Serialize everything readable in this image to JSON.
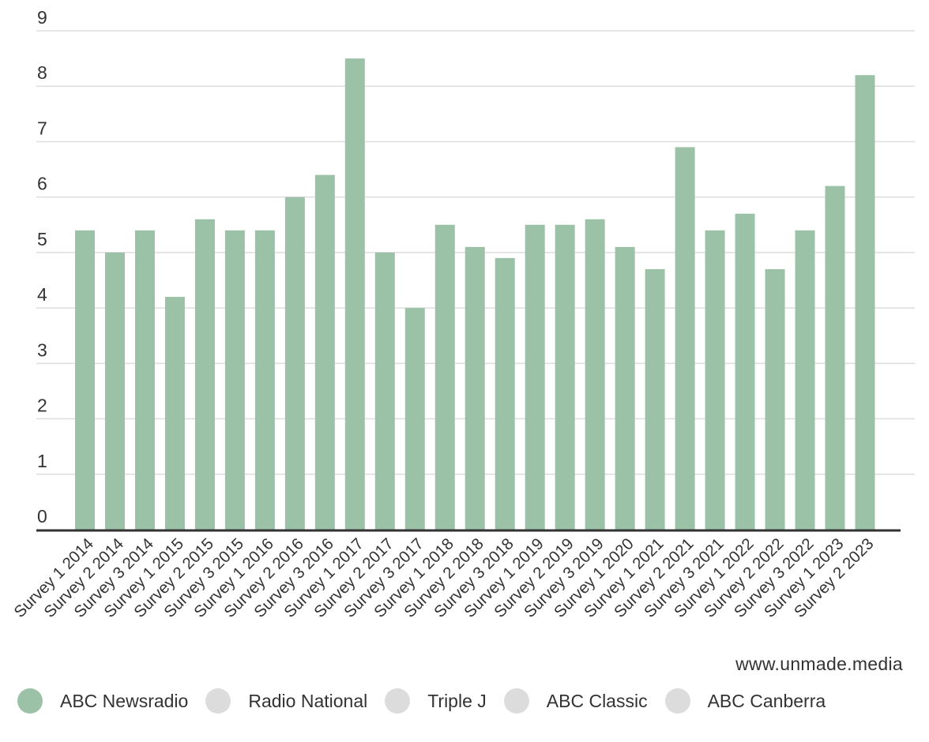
{
  "chart_data": {
    "type": "bar",
    "title": "",
    "xlabel": "",
    "ylabel": "",
    "ylim": [
      0,
      9
    ],
    "yticks": [
      0,
      1,
      2,
      3,
      4,
      5,
      6,
      7,
      8,
      9
    ],
    "grid": true,
    "legend_position": "bottom-left",
    "categories": [
      "Survey 1 2014",
      "Survey 2 2014",
      "Survey 3 2014",
      "Survey 1 2015",
      "Survey 2 2015",
      "Survey 3 2015",
      "Survey 1 2016",
      "Survey 2 2016",
      "Survey 3 2016",
      "Survey 1 2017",
      "Survey 2 2017",
      "Survey 3 2017",
      "Survey 1 2018",
      "Survey 2 2018",
      "Survey 3 2018",
      "Survey 1 2019",
      "Survey 2 2019",
      "Survey 3 2019",
      "Survey 1 2020",
      "Survey 1 2021",
      "Survey 2 2021",
      "Survey 3 2021",
      "Survey 1 2022",
      "Survey 2 2022",
      "Survey 3 2022",
      "Survey 1 2023",
      "Survey 2 2023"
    ],
    "series": [
      {
        "name": "ABC Newsradio",
        "color": "#9bc2a6",
        "active": true,
        "values": [
          5.4,
          5.0,
          5.4,
          4.2,
          5.6,
          5.4,
          5.4,
          6.0,
          6.4,
          8.5,
          5.0,
          4.0,
          5.5,
          5.1,
          4.9,
          5.5,
          5.5,
          5.6,
          5.1,
          4.7,
          6.9,
          5.4,
          5.7,
          4.7,
          5.4,
          6.2,
          8.2
        ]
      }
    ]
  },
  "legend": {
    "items": [
      {
        "label": "ABC Newsradio",
        "color": "#9bc2a6"
      },
      {
        "label": "Radio National",
        "color": "#dcdcdc"
      },
      {
        "label": "Triple J",
        "color": "#dcdcdc"
      },
      {
        "label": "ABC Classic",
        "color": "#dcdcdc"
      },
      {
        "label": "ABC Canberra",
        "color": "#dcdcdc"
      }
    ]
  },
  "source_text": "www.unmade.media",
  "colors": {
    "grid": "#dddddd",
    "baseline": "#333333",
    "text": "#333333"
  }
}
